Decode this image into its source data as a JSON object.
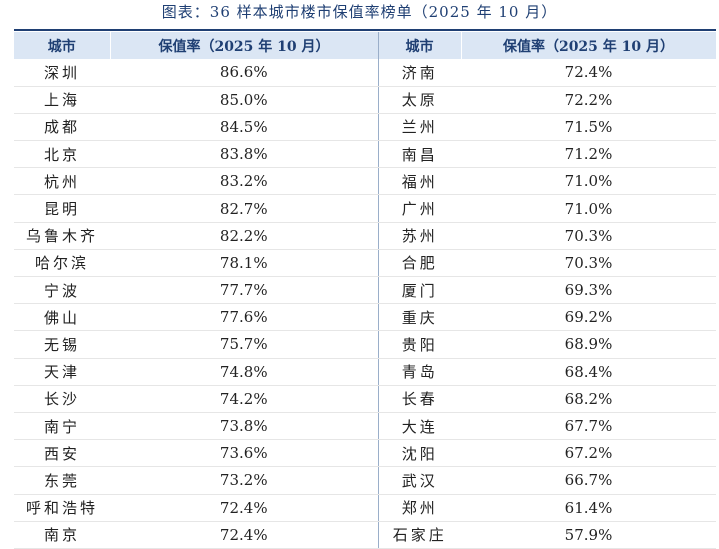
{
  "caption": "图表：36 样本城市楼市保值率榜单（2025 年 10 月）",
  "header": {
    "city_label_left": "城市",
    "rate_label_left": "保值率（2025 年 10 月）",
    "city_label_right": "城市",
    "rate_label_right": "保值率（2025 年 10 月）"
  },
  "rows": [
    {
      "city_left": "深圳",
      "rate_left": "86.6%",
      "city_right": "济南",
      "rate_right": "72.4%"
    },
    {
      "city_left": "上海",
      "rate_left": "85.0%",
      "city_right": "太原",
      "rate_right": "72.2%"
    },
    {
      "city_left": "成都",
      "rate_left": "84.5%",
      "city_right": "兰州",
      "rate_right": "71.5%"
    },
    {
      "city_left": "北京",
      "rate_left": "83.8%",
      "city_right": "南昌",
      "rate_right": "71.2%"
    },
    {
      "city_left": "杭州",
      "rate_left": "83.2%",
      "city_right": "福州",
      "rate_right": "71.0%"
    },
    {
      "city_left": "昆明",
      "rate_left": "82.7%",
      "city_right": "广州",
      "rate_right": "71.0%"
    },
    {
      "city_left": "乌鲁木齐",
      "rate_left": "82.2%",
      "city_right": "苏州",
      "rate_right": "70.3%"
    },
    {
      "city_left": "哈尔滨",
      "rate_left": "78.1%",
      "city_right": "合肥",
      "rate_right": "70.3%"
    },
    {
      "city_left": "宁波",
      "rate_left": "77.7%",
      "city_right": "厦门",
      "rate_right": "69.3%"
    },
    {
      "city_left": "佛山",
      "rate_left": "77.6%",
      "city_right": "重庆",
      "rate_right": "69.2%"
    },
    {
      "city_left": "无锡",
      "rate_left": "75.7%",
      "city_right": "贵阳",
      "rate_right": "68.9%"
    },
    {
      "city_left": "天津",
      "rate_left": "74.8%",
      "city_right": "青岛",
      "rate_right": "68.4%"
    },
    {
      "city_left": "长沙",
      "rate_left": "74.2%",
      "city_right": "长春",
      "rate_right": "68.2%"
    },
    {
      "city_left": "南宁",
      "rate_left": "73.8%",
      "city_right": "大连",
      "rate_right": "67.7%"
    },
    {
      "city_left": "西安",
      "rate_left": "73.6%",
      "city_right": "沈阳",
      "rate_right": "67.2%"
    },
    {
      "city_left": "东莞",
      "rate_left": "73.2%",
      "city_right": "武汉",
      "rate_right": "66.7%"
    },
    {
      "city_left": "呼和浩特",
      "rate_left": "72.4%",
      "city_right": "郑州",
      "rate_right": "61.4%"
    },
    {
      "city_left": "南京",
      "rate_left": "72.4%",
      "city_right": "石家庄",
      "rate_right": "57.9%"
    }
  ]
}
